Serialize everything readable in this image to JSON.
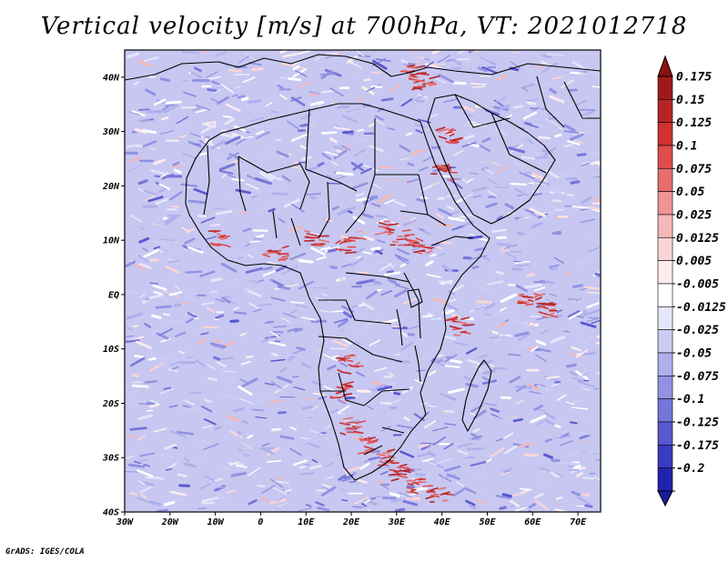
{
  "title": "Vertical velocity [m/s] at 700hPa, VT: 2021012718",
  "credit": "GrADS: IGES/COLA",
  "map": {
    "lon_range": [
      -30,
      75
    ],
    "lat_range": [
      -40,
      45
    ],
    "lon_ticks": [
      {
        "value": -30,
        "label": "30W"
      },
      {
        "value": -20,
        "label": "20W"
      },
      {
        "value": -10,
        "label": "10W"
      },
      {
        "value": 0,
        "label": "0"
      },
      {
        "value": 10,
        "label": "10E"
      },
      {
        "value": 20,
        "label": "20E"
      },
      {
        "value": 30,
        "label": "30E"
      },
      {
        "value": 40,
        "label": "40E"
      },
      {
        "value": 50,
        "label": "50E"
      },
      {
        "value": 60,
        "label": "60E"
      },
      {
        "value": 70,
        "label": "70E"
      }
    ],
    "lat_ticks": [
      {
        "value": 40,
        "label": "40N"
      },
      {
        "value": 30,
        "label": "30N"
      },
      {
        "value": 20,
        "label": "20N"
      },
      {
        "value": 10,
        "label": "10N"
      },
      {
        "value": 0,
        "label": "EQ"
      },
      {
        "value": -10,
        "label": "10S"
      },
      {
        "value": -20,
        "label": "20S"
      },
      {
        "value": -30,
        "label": "30S"
      },
      {
        "value": -40,
        "label": "40S"
      }
    ]
  },
  "colorbar": {
    "levels": [
      {
        "label": "0.175",
        "color": "#9e1a1a"
      },
      {
        "label": "0.15",
        "color": "#b82424"
      },
      {
        "label": "0.125",
        "color": "#cf3232"
      },
      {
        "label": "0.1",
        "color": "#de4c4c"
      },
      {
        "label": "0.075",
        "color": "#e66e6e"
      },
      {
        "label": "0.05",
        "color": "#ee9494"
      },
      {
        "label": "0.025",
        "color": "#f4b8b8"
      },
      {
        "label": "0.0125",
        "color": "#f9d6d6"
      },
      {
        "label": "0.005",
        "color": "#fcecec"
      },
      {
        "label": "-0.005",
        "color": "#ffffff"
      },
      {
        "label": "-0.0125",
        "color": "#e6e6fa"
      },
      {
        "label": "-0.025",
        "color": "#ccccf3"
      },
      {
        "label": "-0.05",
        "color": "#afafec"
      },
      {
        "label": "-0.075",
        "color": "#9292e3"
      },
      {
        "label": "-0.1",
        "color": "#7575da"
      },
      {
        "label": "-0.125",
        "color": "#5858cf"
      },
      {
        "label": "-0.175",
        "color": "#3a3ac2"
      },
      {
        "label": "-0.2",
        "color": "#2222ad"
      }
    ],
    "top_color": "#8b1111",
    "bottom_color": "#1a1a9e"
  },
  "colors": {
    "ocean_base": "#c7c7f1",
    "land_base": "#b9b9ee",
    "border": "#000000"
  }
}
